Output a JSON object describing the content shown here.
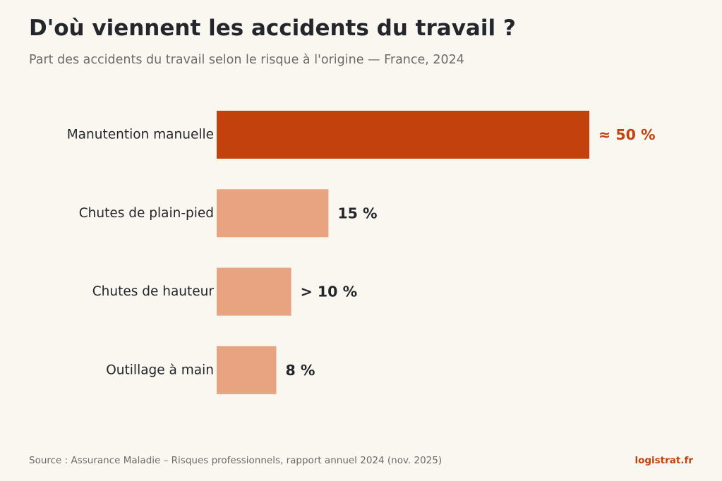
{
  "header": {
    "title": "D'où viennent les accidents du travail ?",
    "subtitle": "Part des accidents du travail selon le risque à l'origine — France, 2024"
  },
  "footer": {
    "source": "Source : Assurance Maladie – Risques professionnels, rapport annuel 2024 (nov. 2025)",
    "brand": "logistrat.fr"
  },
  "colors": {
    "highlight": "#c2410c",
    "muted": "#e8a381",
    "text": "#23262b",
    "brand": "#c2410c"
  },
  "chart_data": {
    "type": "bar",
    "orientation": "horizontal",
    "title": "D'où viennent les accidents du travail ?",
    "subtitle": "Part des accidents du travail selon le risque à l'origine — France, 2024",
    "categories": [
      "Manutention manuelle",
      "Chutes de plain-pied",
      "Chutes de hauteur",
      "Outillage à main"
    ],
    "values": [
      50,
      15,
      10,
      8
    ],
    "value_labels": [
      "≈ 50 %",
      "15 %",
      "> 10 %",
      "8 %"
    ],
    "highlighted": [
      true,
      false,
      false,
      false
    ],
    "unit": "%",
    "xlim": [
      0,
      50
    ],
    "grid": false,
    "legend": "none"
  }
}
